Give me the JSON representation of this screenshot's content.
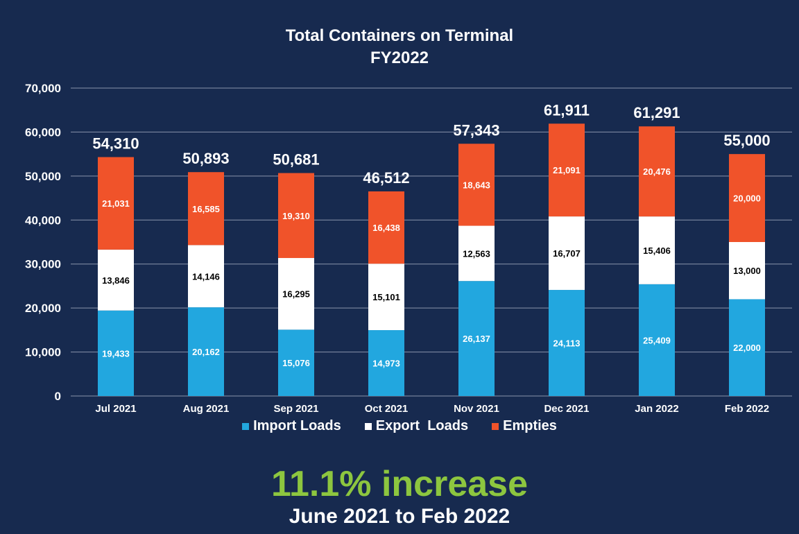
{
  "chart_data": {
    "type": "bar",
    "stacked": true,
    "title": "Total Containers on Terminal",
    "subtitle": "FY2022",
    "categories": [
      "Jul 2021",
      "Aug 2021",
      "Sep 2021",
      "Oct 2021",
      "Nov 2021",
      "Dec 2021",
      "Jan 2022",
      "Feb 2022"
    ],
    "series": [
      {
        "name": "Import Loads",
        "color": "#22a7df",
        "label_color": "#ffffff",
        "values": [
          19433,
          20162,
          15076,
          14973,
          26137,
          24113,
          25409,
          22000
        ],
        "labels": [
          "19,433",
          "20,162",
          "15,076",
          "14,973",
          "26,137",
          "24,113",
          "25,409",
          "22,000"
        ]
      },
      {
        "name": "Export  Loads",
        "color": "#ffffff",
        "label_color": "#000000",
        "values": [
          13846,
          14146,
          16295,
          15101,
          12563,
          16707,
          15406,
          13000
        ],
        "labels": [
          "13,846",
          "14,146",
          "16,295",
          "15,101",
          "12,563",
          "16,707",
          "15,406",
          "13,000"
        ]
      },
      {
        "name": "Empties",
        "color": "#f0532a",
        "label_color": "#ffffff",
        "values": [
          21031,
          16585,
          19310,
          16438,
          18643,
          21091,
          20476,
          20000
        ],
        "labels": [
          "21,031",
          "16,585",
          "19,310",
          "16,438",
          "18,643",
          "21,091",
          "20,476",
          "20,000"
        ]
      }
    ],
    "totals": [
      54310,
      50893,
      50681,
      46512,
      57343,
      61911,
      61291,
      55000
    ],
    "total_labels": [
      "54,310",
      "50,893",
      "50,681",
      "46,512",
      "57,343",
      "61,911",
      "61,291",
      "55,000"
    ],
    "ylim": [
      0,
      70000
    ],
    "yticks": [
      0,
      10000,
      20000,
      30000,
      40000,
      50000,
      60000,
      70000
    ],
    "ytick_labels": [
      "0",
      "10,000",
      "20,000",
      "30,000",
      "40,000",
      "50,000",
      "60,000",
      "70,000"
    ],
    "grid": true,
    "legend_position": "bottom",
    "xlabel": "",
    "ylabel": ""
  },
  "headline": {
    "text": "11.1% increase",
    "color": "#8dc63f"
  },
  "subline": {
    "text": "June 2021 to Feb 2022"
  }
}
